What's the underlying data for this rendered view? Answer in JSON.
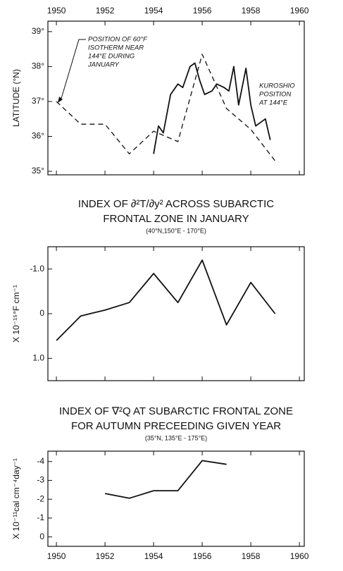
{
  "chart_data": [
    {
      "type": "line",
      "ylabel": "LATITUDE (°N)",
      "annotations": [
        "POSITION OF 60°F",
        "ISOTHERM NEAR",
        "144°E DURING",
        "JANUARY",
        "KUROSHIO",
        "POSITION",
        "AT 144°E"
      ],
      "xlim": [
        1949.65,
        1960.2
      ],
      "xticks": [
        1950,
        1952,
        1954,
        1956,
        1958,
        1960
      ],
      "xtick_labels": "top",
      "ylim": [
        34.9,
        39.3
      ],
      "yticks": [
        {
          "value": 35,
          "label": "35°"
        },
        {
          "value": 36,
          "label": "36°"
        },
        {
          "value": 37,
          "label": "37°"
        },
        {
          "value": 38,
          "label": "38°"
        },
        {
          "value": 39,
          "label": "39°"
        }
      ],
      "series": [
        {
          "color": "#111",
          "dash": true,
          "x": [
            1950,
            1951,
            1952,
            1953,
            1954,
            1955,
            1956,
            1957,
            1958,
            1959
          ],
          "values": [
            37.0,
            36.35,
            36.35,
            35.5,
            36.15,
            35.85,
            38.35,
            36.8,
            36.2,
            35.3
          ]
        },
        {
          "color": "#111",
          "dash": false,
          "x": [
            1954.0,
            1954.2,
            1954.4,
            1954.7,
            1955.0,
            1955.2,
            1955.5,
            1955.7,
            1955.9,
            1956.1,
            1956.4,
            1956.6,
            1956.9,
            1957.1,
            1957.3,
            1957.5,
            1957.8,
            1958.0,
            1958.2,
            1958.4,
            1958.6,
            1958.8
          ],
          "values": [
            35.5,
            36.3,
            36.1,
            37.2,
            37.5,
            37.4,
            38.0,
            38.1,
            37.6,
            37.2,
            37.3,
            37.5,
            37.4,
            37.3,
            38.0,
            36.9,
            37.95,
            36.9,
            36.3,
            36.4,
            36.5,
            35.9
          ]
        }
      ]
    },
    {
      "type": "line",
      "title": [
        "INDEX OF ∂²T/∂y² ACROSS SUBARCTIC",
        "FRONTAL ZONE IN JANUARY"
      ],
      "subtitle": "(40°N,150°E - 170°E)",
      "ylabel": "X 10⁻¹⁵°F cm⁻¹",
      "xlim": [
        1949.65,
        1960.2
      ],
      "xticks": [
        1950,
        1952,
        1954,
        1956,
        1958,
        1960
      ],
      "xtick_labels": "none",
      "ylim": [
        1.5,
        -1.5
      ],
      "yticks": [
        {
          "value": -1,
          "label": "-1.0"
        },
        0,
        {
          "value": 1,
          "label": "1.0"
        }
      ],
      "series": [
        {
          "color": "#111",
          "dash": false,
          "x": [
            1950,
            1951,
            1952,
            1953,
            1954,
            1955,
            1956,
            1957,
            1958,
            1959
          ],
          "values": [
            0.6,
            0.05,
            -0.08,
            -0.25,
            -0.9,
            -0.25,
            -1.2,
            0.25,
            -0.7,
            0.0
          ]
        }
      ]
    },
    {
      "type": "line",
      "title": [
        "INDEX OF  ∇²Q AT SUBARCTIC FRONTAL ZONE",
        "FOR AUTUMN PRECEEDING GIVEN YEAR"
      ],
      "subtitle": "(35°N, 135°E - 175°E)",
      "ylabel": "X 10⁻¹¹cal cm⁻⁴day⁻¹",
      "xlim": [
        1949.65,
        1960.2
      ],
      "xticks": [
        1950,
        1952,
        1954,
        1956,
        1958,
        1960
      ],
      "xtick_labels": "bottom",
      "ylim": [
        0.5,
        -4.55
      ],
      "yticks": [
        -4,
        -3,
        -2,
        -1,
        0
      ],
      "series": [
        {
          "color": "#111",
          "dash": false,
          "x": [
            1952,
            1953,
            1954,
            1955,
            1956,
            1957
          ],
          "values": [
            -2.3,
            -2.05,
            -2.45,
            -2.45,
            -4.05,
            -3.85
          ]
        }
      ]
    }
  ]
}
